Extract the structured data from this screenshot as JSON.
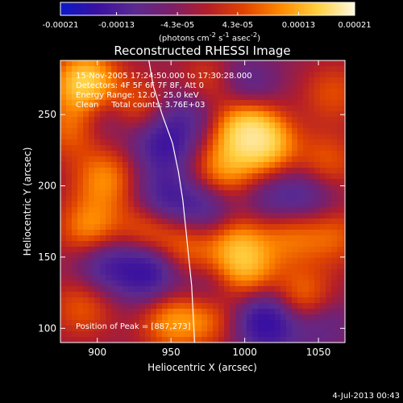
{
  "chart_data": {
    "type": "heatmap",
    "title": "Reconstructed RHESSI Image",
    "xlabel": "Heliocentric X (arcsec)",
    "ylabel": "Heliocentric Y (arcsec)",
    "xlim": [
      875,
      1068
    ],
    "ylim": [
      90,
      288
    ],
    "x_ticks": [
      900,
      950,
      1000,
      1050
    ],
    "y_ticks": [
      100,
      150,
      200,
      250
    ],
    "colorbar": {
      "ticks": [
        "-0.00021",
        "-0.00013",
        "-4.3e-05",
        "4.3e-05",
        "0.00013",
        "0.00021"
      ],
      "tick_values": [
        -0.00021,
        -0.00013,
        -4.3e-05,
        4.3e-05,
        0.00013,
        0.00021
      ],
      "range": [
        -0.00021,
        0.00021
      ],
      "unit_label": "(photons cm<sup>-2</sup> s<sup>-1</sup> asec<sup>-2</sup>)",
      "colors": [
        "#0a1ac8",
        "#3a10a0",
        "#5a2a90",
        "#7a1f6a",
        "#b41e28",
        "#e04400",
        "#ff8a00",
        "#ffd040",
        "#fff8e0"
      ]
    },
    "annotations": {
      "time_range": "15-Nov-2005 17:24:50.000 to 17:30:28.000",
      "detectors": "Detectors: 4F 5F 6F 7F 8F, Att 0",
      "energy_range": "Energy Range: 12.0 - 25.0 keV",
      "algorithm": "Clean     Total counts: 3.76E+03",
      "peak": "Position of Peak = [887,273]"
    },
    "limb_curve": [
      [
        935,
        288
      ],
      [
        938,
        270
      ],
      [
        944,
        250
      ],
      [
        951,
        230
      ],
      [
        955,
        210
      ],
      [
        958,
        190
      ],
      [
        960,
        170
      ],
      [
        962,
        150
      ],
      [
        964,
        130
      ],
      [
        965,
        110
      ],
      [
        966,
        90
      ]
    ],
    "hotspots": [
      {
        "x": 892,
        "y": 272,
        "v": 1.0
      },
      {
        "x": 883,
        "y": 240,
        "v": 0.45
      },
      {
        "x": 925,
        "y": 255,
        "v": 0.45
      },
      {
        "x": 975,
        "y": 270,
        "v": 0.45
      },
      {
        "x": 1000,
        "y": 240,
        "v": 0.85
      },
      {
        "x": 1015,
        "y": 228,
        "v": 0.7
      },
      {
        "x": 985,
        "y": 210,
        "v": 0.6
      },
      {
        "x": 1055,
        "y": 215,
        "v": 0.45
      },
      {
        "x": 1060,
        "y": 265,
        "v": 0.35
      },
      {
        "x": 905,
        "y": 205,
        "v": 0.55
      },
      {
        "x": 895,
        "y": 170,
        "v": 0.6
      },
      {
        "x": 935,
        "y": 170,
        "v": 0.5
      },
      {
        "x": 960,
        "y": 155,
        "v": 0.45
      },
      {
        "x": 995,
        "y": 160,
        "v": 0.55
      },
      {
        "x": 1030,
        "y": 165,
        "v": 0.45
      },
      {
        "x": 1040,
        "y": 120,
        "v": 0.6
      },
      {
        "x": 1000,
        "y": 140,
        "v": 0.6
      },
      {
        "x": 975,
        "y": 110,
        "v": 0.55
      },
      {
        "x": 950,
        "y": 105,
        "v": 0.55
      },
      {
        "x": 890,
        "y": 115,
        "v": 0.4
      },
      {
        "x": 1060,
        "y": 165,
        "v": 0.4
      },
      {
        "x": 945,
        "y": 230,
        "v": -0.6
      },
      {
        "x": 945,
        "y": 190,
        "v": -0.55
      },
      {
        "x": 935,
        "y": 140,
        "v": -0.7
      },
      {
        "x": 1015,
        "y": 105,
        "v": -0.8
      },
      {
        "x": 975,
        "y": 185,
        "v": -0.45
      },
      {
        "x": 1000,
        "y": 270,
        "v": -0.4
      },
      {
        "x": 965,
        "y": 255,
        "v": -0.4
      },
      {
        "x": 905,
        "y": 250,
        "v": -0.4
      },
      {
        "x": 905,
        "y": 145,
        "v": -0.5
      },
      {
        "x": 1045,
        "y": 195,
        "v": -0.4
      },
      {
        "x": 1050,
        "y": 105,
        "v": -0.4
      },
      {
        "x": 975,
        "y": 125,
        "v": -0.45
      },
      {
        "x": 1020,
        "y": 190,
        "v": -0.35
      }
    ]
  },
  "footer": {
    "timestamp": "4-Jul-2013 00:43"
  }
}
